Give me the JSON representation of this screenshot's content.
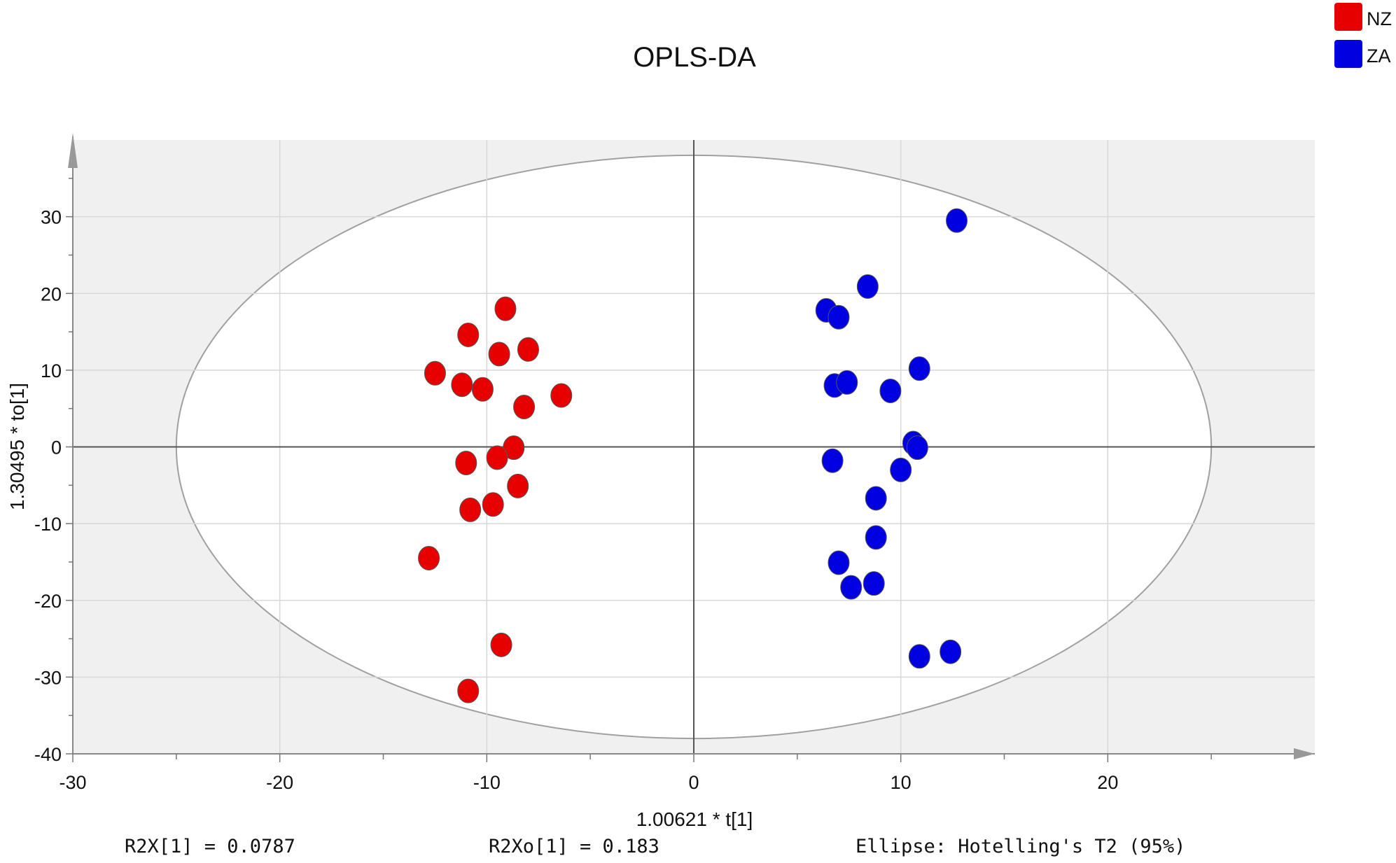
{
  "chart_data": {
    "type": "scatter",
    "title": "OPLS-DA",
    "xlabel": "1.00621 * t[1]",
    "ylabel": "1.30495 * to[1]",
    "xlim": [
      -30,
      30
    ],
    "ylim": [
      -40,
      40
    ],
    "xticks": [
      -30,
      -20,
      -10,
      0,
      10,
      20
    ],
    "yticks": [
      -40,
      -30,
      -20,
      -10,
      0,
      10,
      20,
      30
    ],
    "grid": true,
    "legend_position": "top-right",
    "ellipse": {
      "label": "Ellipse: Hotelling's T2 (95%)",
      "x_radius": 25,
      "y_radius": 38
    },
    "annotations": [
      "R2X[1] = 0.0787",
      "R2Xo[1] = 0.183",
      "Ellipse: Hotelling's T2 (95%)"
    ],
    "series": [
      {
        "name": "NZ",
        "color": "#e60000",
        "points": [
          [
            -9.1,
            18.0
          ],
          [
            -10.9,
            14.6
          ],
          [
            -9.4,
            12.1
          ],
          [
            -8.0,
            12.7
          ],
          [
            -12.5,
            9.6
          ],
          [
            -11.2,
            8.1
          ],
          [
            -10.2,
            7.5
          ],
          [
            -6.4,
            6.7
          ],
          [
            -8.2,
            5.2
          ],
          [
            -8.7,
            -0.1
          ],
          [
            -9.5,
            -1.4
          ],
          [
            -11.0,
            -2.1
          ],
          [
            -8.5,
            -5.1
          ],
          [
            -9.7,
            -7.5
          ],
          [
            -10.8,
            -8.2
          ],
          [
            -12.8,
            -14.5
          ],
          [
            -9.3,
            -25.8
          ],
          [
            -10.9,
            -31.8
          ]
        ]
      },
      {
        "name": "ZA",
        "color": "#0000e0",
        "points": [
          [
            12.7,
            29.5
          ],
          [
            8.4,
            20.9
          ],
          [
            6.4,
            17.8
          ],
          [
            7.0,
            16.9
          ],
          [
            10.9,
            10.2
          ],
          [
            6.8,
            8.0
          ],
          [
            7.4,
            8.4
          ],
          [
            9.5,
            7.3
          ],
          [
            10.6,
            0.5
          ],
          [
            10.8,
            -0.1
          ],
          [
            6.7,
            -1.8
          ],
          [
            10.0,
            -3.0
          ],
          [
            8.8,
            -6.7
          ],
          [
            8.8,
            -11.8
          ],
          [
            7.0,
            -15.1
          ],
          [
            7.6,
            -18.3
          ],
          [
            8.7,
            -17.8
          ],
          [
            12.4,
            -26.7
          ],
          [
            10.9,
            -27.3
          ]
        ]
      }
    ]
  }
}
